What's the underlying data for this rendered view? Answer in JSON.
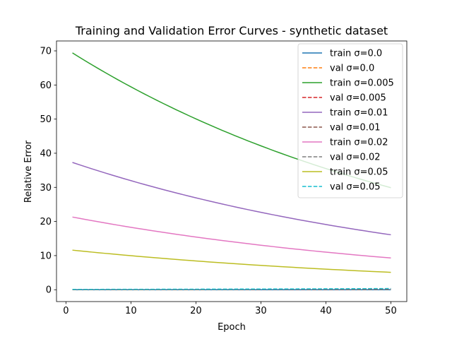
{
  "chart_data": {
    "type": "line",
    "title": "Training and Validation Error Curves - synthetic dataset",
    "xlabel": "Epoch",
    "ylabel": "Relative Error",
    "xlim": [
      -1.45,
      52.45
    ],
    "ylim": [
      -3.47,
      72.9
    ],
    "xticks": [
      0,
      10,
      20,
      30,
      40,
      50
    ],
    "yticks": [
      0,
      10,
      20,
      30,
      40,
      50,
      60,
      70
    ],
    "grid": false,
    "legend_position": "top-right",
    "x_start": 1,
    "x_end": 50,
    "series": [
      {
        "name": "train σ=0.0",
        "color": "#1f77b4",
        "dash": "solid",
        "start": 0.0,
        "end": 0.0
      },
      {
        "name": "val σ=0.0",
        "color": "#ff7f0e",
        "dash": "dashed",
        "start": 0.0,
        "end": 0.15
      },
      {
        "name": "train σ=0.005",
        "color": "#2ca02c",
        "dash": "solid",
        "start": 69.4,
        "end": 29.9
      },
      {
        "name": "val σ=0.005",
        "color": "#d62728",
        "dash": "dashed",
        "start": 0.05,
        "end": 0.2
      },
      {
        "name": "train σ=0.01",
        "color": "#9467bd",
        "dash": "solid",
        "start": 37.3,
        "end": 16.1
      },
      {
        "name": "val σ=0.01",
        "color": "#8c564b",
        "dash": "dashed",
        "start": 0.05,
        "end": 0.25
      },
      {
        "name": "train σ=0.02",
        "color": "#e377c2",
        "dash": "solid",
        "start": 21.3,
        "end": 9.3
      },
      {
        "name": "val σ=0.02",
        "color": "#7f7f7f",
        "dash": "dashed",
        "start": 0.05,
        "end": 0.3
      },
      {
        "name": "train σ=0.05",
        "color": "#bcbd22",
        "dash": "solid",
        "start": 11.6,
        "end": 5.1
      },
      {
        "name": "val σ=0.05",
        "color": "#17becf",
        "dash": "dashed",
        "start": 0.1,
        "end": 0.35
      }
    ]
  }
}
